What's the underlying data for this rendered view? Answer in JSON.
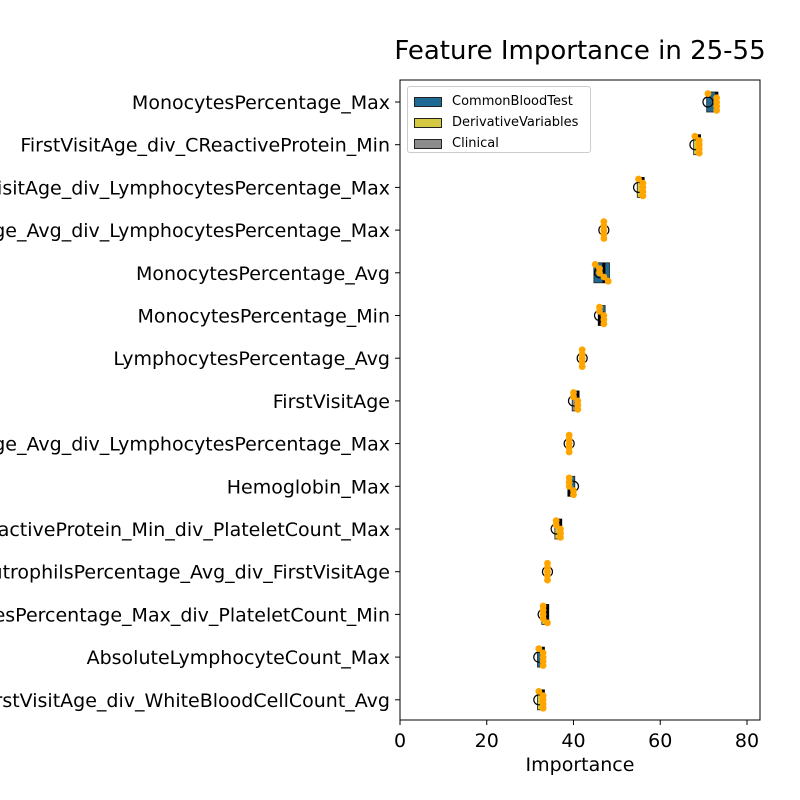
{
  "chart_data": {
    "type": "bar",
    "title": "Feature Importance in 25-55",
    "xlabel": "Importance",
    "ylabel": "",
    "xlim": [
      0,
      83
    ],
    "xticks": [
      0,
      20,
      40,
      60,
      80
    ],
    "grid": false,
    "legend_position": "top-left",
    "legend": [
      {
        "name": "CommonBloodTest",
        "color": "#1f6a94"
      },
      {
        "name": "DerivativeVariables",
        "color": "#d4c941"
      },
      {
        "name": "Clinical",
        "color": "#8c8c8c"
      }
    ],
    "point_color": "#ffa500",
    "features": [
      {
        "label": "MonocytesPercentage_Max",
        "group": "CommonBloodTest",
        "value": 73,
        "mean": 71,
        "points": [
          71,
          73,
          73,
          73,
          73
        ]
      },
      {
        "label": "FirstVisitAge_div_CReactiveProtein_Min",
        "group": "DerivativeVariables",
        "value": 69,
        "mean": 68,
        "points": [
          68,
          69,
          69,
          69,
          69
        ]
      },
      {
        "label": "FirstVisitAge_div_LymphocytesPercentage_Max",
        "group": "DerivativeVariables",
        "value": 56,
        "mean": 55,
        "points": [
          55,
          56,
          56,
          56,
          56
        ]
      },
      {
        "label": "MonocytesPercentage_Avg_div_LymphocytesPercentage_Max",
        "group": "DerivativeVariables",
        "value": 47,
        "mean": 47,
        "points": [
          47,
          47,
          47,
          47,
          47
        ]
      },
      {
        "label": "MonocytesPercentage_Avg",
        "group": "CommonBloodTest",
        "value": 47,
        "mean": 46,
        "points": [
          45,
          46,
          46,
          47,
          48
        ]
      },
      {
        "label": "MonocytesPercentage_Min",
        "group": "CommonBloodTest",
        "value": 46,
        "mean": 46,
        "points": [
          46,
          46,
          47,
          47,
          47
        ]
      },
      {
        "label": "LymphocytesPercentage_Avg",
        "group": "CommonBloodTest",
        "value": 42,
        "mean": 42,
        "points": [
          42,
          42,
          42,
          42,
          42
        ]
      },
      {
        "label": "FirstVisitAge",
        "group": "Clinical",
        "value": 41,
        "mean": 40,
        "points": [
          40,
          40,
          41,
          41,
          41
        ]
      },
      {
        "label": "MonocytesPercentage_Avg_div_LymphocytesPercentage_Max",
        "group": "DerivativeVariables",
        "value": 39,
        "mean": 39,
        "points": [
          39,
          39,
          39,
          39,
          39
        ]
      },
      {
        "label": "Hemoglobin_Max",
        "group": "CommonBloodTest",
        "value": 39,
        "mean": 40,
        "points": [
          39,
          39,
          39,
          40,
          40
        ]
      },
      {
        "label": "CReactiveProtein_Min_div_PlateletCount_Max",
        "group": "DerivativeVariables",
        "value": 37,
        "mean": 36,
        "points": [
          36,
          36,
          37,
          37,
          37
        ]
      },
      {
        "label": "NeutrophilsPercentage_Avg_div_FirstVisitAge",
        "group": "DerivativeVariables",
        "value": 34,
        "mean": 34,
        "points": [
          34,
          34,
          34,
          34,
          34
        ]
      },
      {
        "label": "LymphocytesPercentage_Max_div_PlateletCount_Min",
        "group": "DerivativeVariables",
        "value": 34,
        "mean": 33,
        "points": [
          33,
          33,
          33,
          33,
          34
        ]
      },
      {
        "label": "AbsoluteLymphocyteCount_Max",
        "group": "CommonBloodTest",
        "value": 33,
        "mean": 32,
        "points": [
          32,
          33,
          33,
          33,
          33
        ]
      },
      {
        "label": "FirstVisitAge_div_WhiteBloodCellCount_Avg",
        "group": "DerivativeVariables",
        "value": 33,
        "mean": 32,
        "points": [
          32,
          33,
          33,
          33,
          33
        ]
      }
    ]
  }
}
